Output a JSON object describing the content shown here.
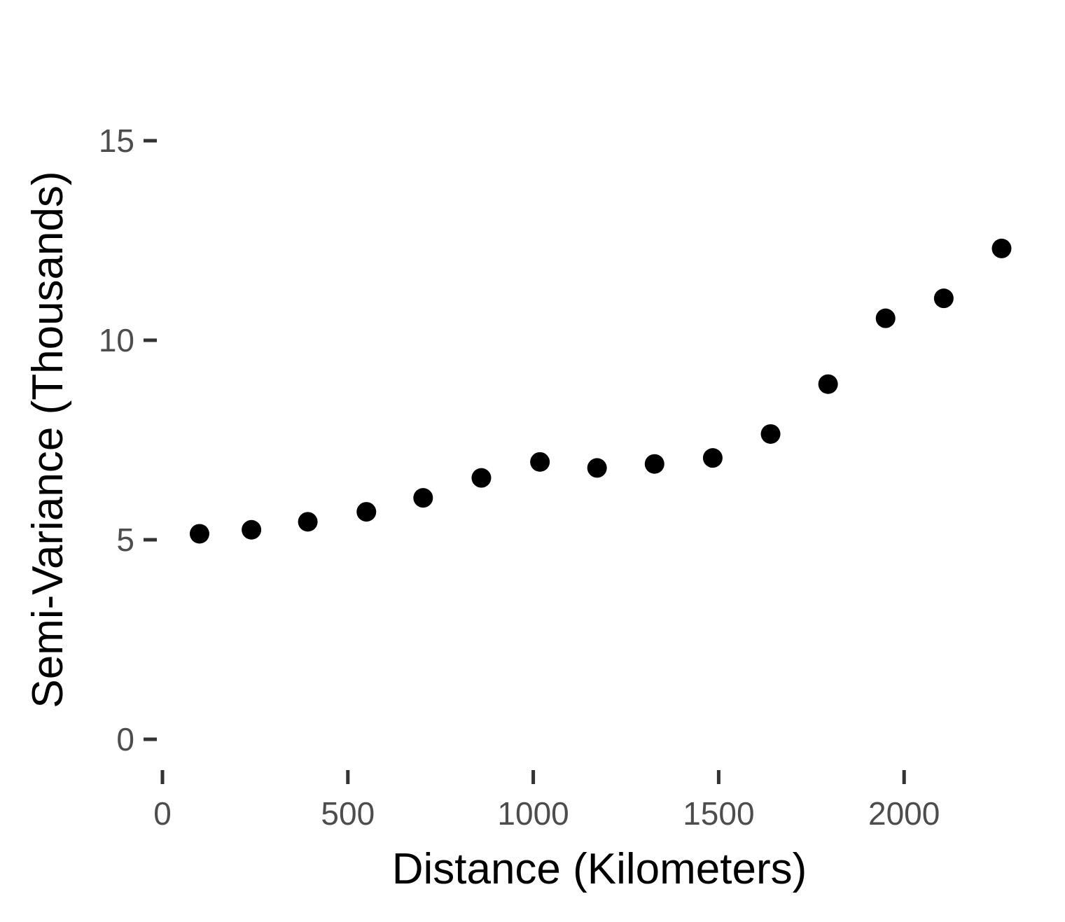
{
  "chart_data": {
    "type": "scatter",
    "title": "",
    "xlabel": "Distance (Kilometers)",
    "ylabel": "Semi-Variance (Thousands)",
    "xlim": [
      0,
      2300
    ],
    "ylim": [
      0,
      15
    ],
    "x_ticks": [
      0,
      500,
      1000,
      1500,
      2000
    ],
    "y_ticks": [
      0,
      5,
      10,
      15
    ],
    "grid": false,
    "legend": "none",
    "point_color": "#000000",
    "series": [
      {
        "x": [
          100,
          240,
          392,
          550,
          703,
          860,
          1018,
          1172,
          1327,
          1484,
          1640,
          1795,
          1950,
          2107,
          2263
        ],
        "y": [
          5.15,
          5.25,
          5.45,
          5.7,
          6.05,
          6.55,
          6.95,
          6.8,
          6.9,
          7.05,
          7.65,
          8.9,
          10.55,
          11.05,
          12.3
        ]
      }
    ]
  }
}
